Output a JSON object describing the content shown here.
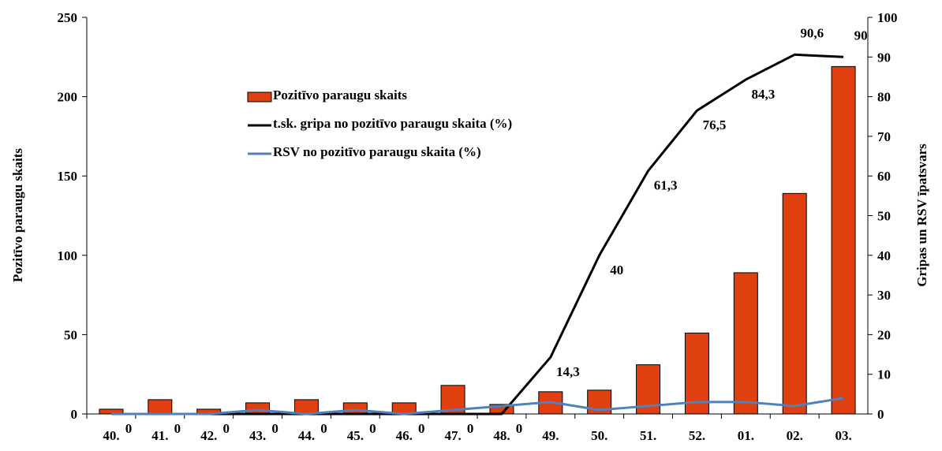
{
  "chart_data": {
    "type": "combo",
    "categories": [
      "40.",
      "41.",
      "42.",
      "43.",
      "44.",
      "45.",
      "46.",
      "47.",
      "48.",
      "49.",
      "50.",
      "51.",
      "52.",
      "01.",
      "02.",
      "03."
    ],
    "ylabel": "Pozitīvo  paraugu skaits",
    "y2label": "Gripas un RSV īpatsvars",
    "ylim": [
      0,
      250
    ],
    "yticks": [
      0,
      50,
      100,
      150,
      200,
      250
    ],
    "y2lim": [
      0,
      100
    ],
    "y2ticks": [
      0,
      10,
      20,
      30,
      40,
      50,
      60,
      70,
      80,
      90,
      100
    ],
    "series": [
      {
        "name": "Pozitīvo paraugu skaits",
        "type": "bar",
        "color": "#e0400f",
        "values": [
          3,
          9,
          3,
          7,
          9,
          7,
          7,
          18,
          6,
          14,
          15,
          31,
          51,
          89,
          139,
          219
        ]
      },
      {
        "name": "t.sk. gripa no pozitīvo paraugu skaita (%)",
        "type": "line",
        "axis": "y2",
        "color": "#000000",
        "values": [
          0,
          0,
          0,
          0,
          0,
          0,
          0,
          0,
          0,
          14.3,
          40,
          61.3,
          76.5,
          84.3,
          90.6,
          90
        ],
        "value_labels": [
          "0",
          "0",
          "0",
          "0",
          "0",
          "0",
          "0",
          "0",
          "0",
          "14,3",
          "40",
          "61,3",
          "76,5",
          "84,3",
          "90,6",
          "90"
        ]
      },
      {
        "name": "RSV no pozitīvo paraugu skaita (%)",
        "type": "line",
        "axis": "y2",
        "color": "#4f81bd",
        "values": [
          0,
          0,
          0,
          1,
          0,
          1,
          0,
          1,
          2,
          3,
          1,
          2,
          3,
          3,
          2,
          4
        ]
      }
    ],
    "legend": "upper left"
  }
}
